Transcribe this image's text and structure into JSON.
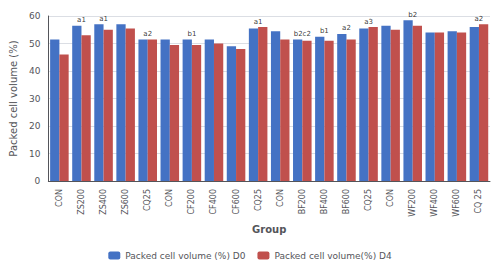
{
  "chart_data": {
    "type": "bar",
    "categories": [
      "CON",
      "ZS200",
      "ZS400",
      "ZS600",
      "CQ25",
      "CON",
      "CF200",
      "CF400",
      "CF600",
      "CQ25",
      "CON",
      "BF200",
      "BF400",
      "BF600",
      "CQ25",
      "CON",
      "WF200",
      "WF400",
      "WF600",
      "CQ 25"
    ],
    "series": [
      {
        "name": "Packed cell volume (%) D0",
        "color": "#4472C4",
        "values": [
          51.5,
          56.5,
          57.0,
          57.0,
          51.5,
          51.5,
          51.5,
          51.5,
          49.0,
          55.5,
          54.5,
          51.5,
          52.5,
          53.5,
          55.5,
          56.5,
          58.5,
          54.0,
          54.5,
          56.0
        ]
      },
      {
        "name": "Packed cell volume(%) D4",
        "color": "#C0504D",
        "values": [
          46.0,
          53.0,
          55.0,
          55.5,
          51.5,
          49.5,
          49.5,
          50.0,
          48.0,
          56.0,
          51.5,
          51.0,
          51.0,
          51.5,
          56.0,
          55.0,
          56.5,
          54.0,
          54.0,
          57.0
        ]
      }
    ],
    "annotations": [
      null,
      "a1",
      "a1",
      null,
      "a2",
      null,
      "b1",
      null,
      null,
      "a1",
      null,
      "b2c2",
      "b1",
      "a2",
      "a3",
      null,
      "b2",
      null,
      null,
      "a2"
    ],
    "xlabel": "Group",
    "ylabel": "Packed cell volume (%)",
    "ylim": [
      0,
      60
    ],
    "yticks": [
      0,
      10,
      20,
      30,
      40,
      50,
      60
    ],
    "grid": true,
    "legend": "bottom"
  }
}
